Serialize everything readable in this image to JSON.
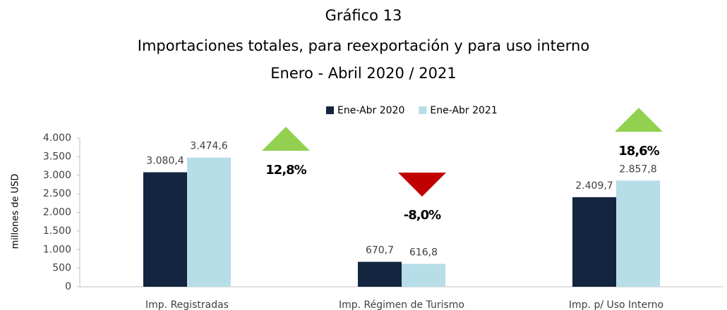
{
  "chart_data": {
    "type": "bar",
    "title": "Gráfico 13",
    "subtitle": "Importaciones totales, para reexportación y para uso interno",
    "subtitle2": "Enero - Abril 2020 / 2021",
    "ylabel": "millones de  USD",
    "categories": [
      "Imp. Registradas",
      "Imp. Régimen de Turismo",
      "Imp. p/ Uso Interno"
    ],
    "series": [
      {
        "name": "Ene-Abr 2020",
        "color": "#13253f",
        "values": [
          3080.4,
          670.7,
          2409.7
        ],
        "value_labels": [
          "3.080,4",
          "670,7",
          "2.409,7"
        ]
      },
      {
        "name": "Ene-Abr 2021",
        "color": "#b7dde8",
        "values": [
          3474.6,
          616.8,
          2857.8
        ],
        "value_labels": [
          "3.474,6",
          "616,8",
          "2.857,8"
        ]
      }
    ],
    "ylim": [
      0,
      4000
    ],
    "yticks": [
      0,
      500,
      {
        "value": 1000,
        "label": "1.000"
      },
      {
        "value": 1500,
        "label": "1.500"
      },
      {
        "value": 2000,
        "label": "2.000"
      },
      {
        "value": 2500,
        "label": "2.500"
      },
      {
        "value": 3000,
        "label": "3.000"
      },
      {
        "value": 3500,
        "label": "3.500"
      },
      {
        "value": 4000,
        "label": "4.000"
      }
    ],
    "annotations": [
      {
        "text": "12,8%",
        "direction": "up",
        "color": "#92d050"
      },
      {
        "text": "-8,0%",
        "direction": "down",
        "color": "#c00000"
      },
      {
        "text": "18,6%",
        "direction": "up",
        "color": "#92d050"
      }
    ],
    "legend": "top",
    "grid": false
  }
}
